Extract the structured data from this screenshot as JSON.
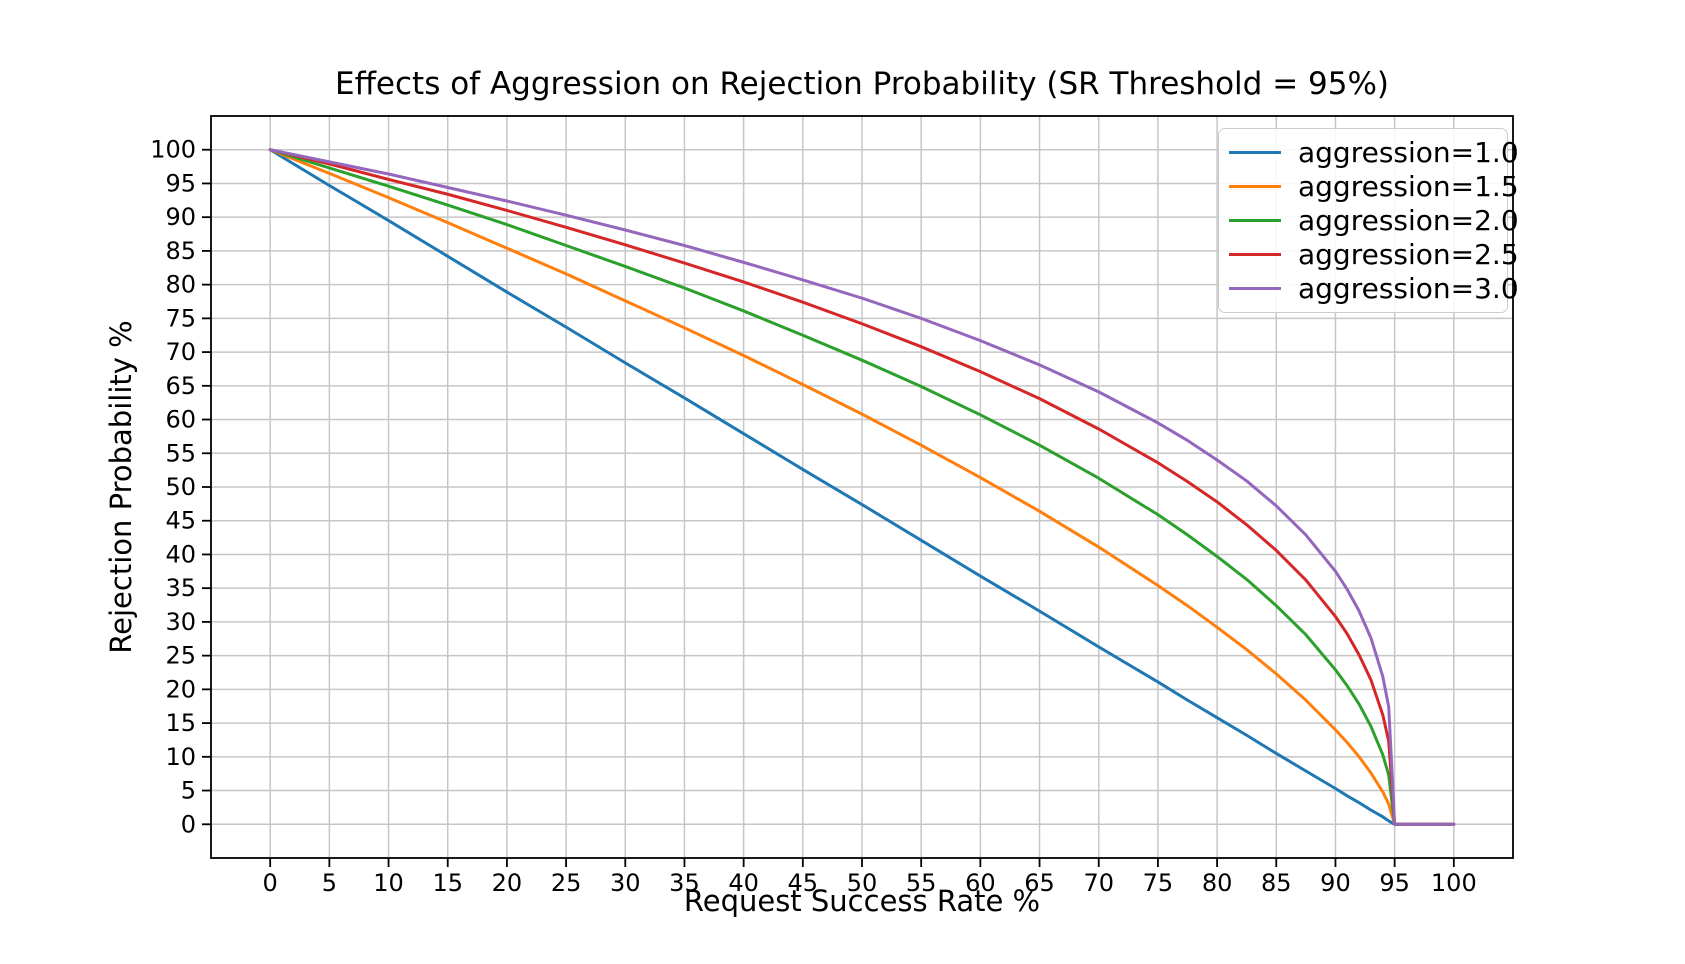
{
  "figure": {
    "background": "#ffffff"
  },
  "chart_data": {
    "type": "line",
    "title": "Effects of Aggression on Rejection Probability (SR Threshold = 95%)",
    "xlabel": "Request Success Rate %",
    "ylabel": "Rejection Probability %",
    "sr_threshold_pct": 95,
    "grid": true,
    "grid_color": "#c6c6c6",
    "spine_color": "#000000",
    "legend_position": "upper right",
    "xlim": [
      -5,
      105
    ],
    "ylim": [
      -5,
      105
    ],
    "x_ticks": [
      0,
      5,
      10,
      15,
      20,
      25,
      30,
      35,
      40,
      45,
      50,
      55,
      60,
      65,
      70,
      75,
      80,
      85,
      90,
      95,
      100
    ],
    "y_ticks": [
      0,
      5,
      10,
      15,
      20,
      25,
      30,
      35,
      40,
      45,
      50,
      55,
      60,
      65,
      70,
      75,
      80,
      85,
      90,
      95,
      100
    ],
    "x": [
      0,
      5,
      10,
      15,
      20,
      25,
      30,
      35,
      40,
      45,
      50,
      55,
      60,
      65,
      70,
      75,
      77.5,
      80,
      82.5,
      85,
      87.5,
      90,
      91,
      92,
      93,
      94,
      94.5,
      95,
      100
    ],
    "series": [
      {
        "name": "aggression=1.0",
        "color": "#1f77b4",
        "values": [
          100,
          94.7,
          89.5,
          84.2,
          78.9,
          73.7,
          68.4,
          63.2,
          57.9,
          52.6,
          47.4,
          42.1,
          36.8,
          31.6,
          26.3,
          21.1,
          18.4,
          15.8,
          13.2,
          10.5,
          7.9,
          5.3,
          4.2,
          3.2,
          2.1,
          1.1,
          0.5,
          0,
          0
        ]
      },
      {
        "name": "aggression=1.5",
        "color": "#ff7f0e",
        "values": [
          100,
          96.5,
          92.9,
          89.2,
          85.4,
          81.6,
          77.6,
          73.6,
          69.5,
          65.2,
          60.8,
          56.2,
          51.4,
          46.4,
          41.1,
          35.4,
          32.4,
          29.2,
          25.9,
          22.3,
          18.4,
          14.0,
          12.1,
          10.0,
          7.6,
          4.8,
          3.0,
          0,
          0
        ]
      },
      {
        "name": "aggression=2.0",
        "color": "#2ca02c",
        "values": [
          100,
          97.3,
          94.6,
          91.8,
          88.9,
          85.8,
          82.7,
          79.5,
          76.1,
          72.5,
          68.8,
          64.9,
          60.7,
          56.2,
          51.3,
          45.9,
          42.9,
          39.7,
          36.3,
          32.4,
          28.1,
          22.9,
          20.5,
          17.8,
          14.5,
          10.3,
          7.3,
          0,
          0
        ]
      },
      {
        "name": "aggression=2.5",
        "color": "#d62728",
        "values": [
          100,
          97.9,
          95.6,
          93.4,
          91.0,
          88.5,
          85.9,
          83.2,
          80.4,
          77.4,
          74.2,
          70.8,
          67.1,
          63.1,
          58.6,
          53.6,
          50.8,
          47.8,
          44.4,
          40.6,
          36.2,
          30.8,
          28.2,
          25.1,
          21.4,
          16.2,
          12.3,
          0,
          0
        ]
      },
      {
        "name": "aggression=3.0",
        "color": "#9467bd",
        "values": [
          100,
          98.2,
          96.4,
          94.4,
          92.4,
          90.3,
          88.1,
          85.8,
          83.3,
          80.7,
          78.0,
          75.0,
          71.7,
          68.1,
          64.1,
          59.5,
          56.9,
          54.0,
          50.9,
          47.2,
          42.9,
          37.5,
          34.8,
          31.6,
          27.6,
          21.9,
          17.4,
          0,
          0
        ]
      }
    ]
  }
}
